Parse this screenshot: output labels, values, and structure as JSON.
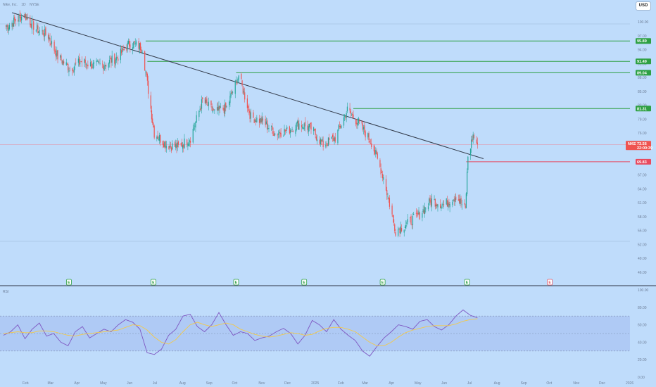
{
  "header": {
    "symbol": "Nike, Inc.",
    "interval": "1D",
    "exchange": "NYSE"
  },
  "currency_button": "USD",
  "colors": {
    "background": "#bfdcfb",
    "up": "#26a69a",
    "down": "#ef5350",
    "level": "#2ea043",
    "support": "#e84a5f",
    "trendline": "#333b4a",
    "rsi_line": "#7e57c2",
    "rsi_ma": "#f2c94c"
  },
  "chart_data": [
    {
      "type": "candlestick",
      "ylim": [
        44,
        102
      ],
      "y_ticks": [
        "100.00",
        "97.00",
        "94.00",
        "91.00",
        "88.00",
        "85.00",
        "82.00",
        "79.00",
        "76.00",
        "73.00",
        "70.00",
        "67.00",
        "64.00",
        "61.00",
        "58.00",
        "55.00",
        "52.00",
        "49.00",
        "46.00"
      ],
      "x_ticks": [
        "Feb",
        "Mar",
        "Apr",
        "May",
        "Jun",
        "Jul",
        "Aug",
        "Sep",
        "Oct",
        "Nov",
        "Dec",
        "2025",
        "Feb",
        "Mar",
        "Apr",
        "May",
        "Jun",
        "Jul",
        "Aug",
        "Sep",
        "Oct",
        "Nov",
        "Dec",
        "2026"
      ],
      "price_levels": [
        {
          "label": "95.89",
          "value": 95.89,
          "color": "#2ea043"
        },
        {
          "label": "91.49",
          "value": 91.49,
          "color": "#2ea043"
        },
        {
          "label": "89.04",
          "value": 89.04,
          "color": "#2ea043"
        },
        {
          "label": "81.31",
          "value": 81.31,
          "color": "#2ea043"
        },
        {
          "label": "69.83",
          "value": 69.83,
          "color": "#e84a5f"
        }
      ],
      "last_price": {
        "ticker": "NKE",
        "value": "73.56",
        "countdown": "22:00:39"
      },
      "trendline": [
        {
          "x": "2024-01-15",
          "y": 102.0
        },
        {
          "x": "2025-07-15",
          "y": 70.5
        }
      ],
      "event_markers": [
        {
          "x": "Mar",
          "label": "E"
        },
        {
          "x": "Jun",
          "label": "E"
        },
        {
          "x": "Sep",
          "label": "E"
        },
        {
          "x": "Dec",
          "label": "E"
        },
        {
          "x": "Mar",
          "label": "E"
        },
        {
          "x": "Jun",
          "label": "E"
        },
        {
          "x": "Jul",
          "label": "E"
        }
      ],
      "close_path": [
        {
          "x": "2024-01-08",
          "y": 99.0
        },
        {
          "x": "2024-01-29",
          "y": 101.5
        },
        {
          "x": "2024-02-12",
          "y": 98.5
        },
        {
          "x": "2024-02-26",
          "y": 97.0
        },
        {
          "x": "2024-03-08",
          "y": 92.5
        },
        {
          "x": "2024-03-22",
          "y": 90.0
        },
        {
          "x": "2024-04-05",
          "y": 91.5
        },
        {
          "x": "2024-04-19",
          "y": 90.5
        },
        {
          "x": "2024-05-03",
          "y": 91.0
        },
        {
          "x": "2024-05-17",
          "y": 92.5
        },
        {
          "x": "2024-05-31",
          "y": 95.5
        },
        {
          "x": "2024-06-14",
          "y": 94.5
        },
        {
          "x": "2024-06-28",
          "y": 76.0
        },
        {
          "x": "2024-07-12",
          "y": 73.5
        },
        {
          "x": "2024-07-26",
          "y": 73.0
        },
        {
          "x": "2024-08-09",
          "y": 75.0
        },
        {
          "x": "2024-08-23",
          "y": 83.0
        },
        {
          "x": "2024-09-06",
          "y": 80.5
        },
        {
          "x": "2024-09-20",
          "y": 81.5
        },
        {
          "x": "2024-10-04",
          "y": 88.5
        },
        {
          "x": "2024-10-18",
          "y": 79.5
        },
        {
          "x": "2024-11-01",
          "y": 78.5
        },
        {
          "x": "2024-11-15",
          "y": 76.0
        },
        {
          "x": "2024-11-29",
          "y": 76.5
        },
        {
          "x": "2024-12-13",
          "y": 78.0
        },
        {
          "x": "2024-12-27",
          "y": 77.0
        },
        {
          "x": "2025-01-10",
          "y": 73.5
        },
        {
          "x": "2025-01-24",
          "y": 75.0
        },
        {
          "x": "2025-02-07",
          "y": 81.0
        },
        {
          "x": "2025-02-21",
          "y": 78.0
        },
        {
          "x": "2025-03-07",
          "y": 74.0
        },
        {
          "x": "2025-03-21",
          "y": 66.5
        },
        {
          "x": "2025-04-04",
          "y": 55.0
        },
        {
          "x": "2025-04-18",
          "y": 56.5
        },
        {
          "x": "2025-05-02",
          "y": 58.5
        },
        {
          "x": "2025-05-16",
          "y": 61.5
        },
        {
          "x": "2025-05-30",
          "y": 60.5
        },
        {
          "x": "2025-06-13",
          "y": 62.5
        },
        {
          "x": "2025-06-24",
          "y": 59.5
        },
        {
          "x": "2025-06-27",
          "y": 71.0
        },
        {
          "x": "2025-07-03",
          "y": 75.5
        },
        {
          "x": "2025-07-08",
          "y": 73.56
        }
      ]
    },
    {
      "type": "line",
      "title": "RSI",
      "ylim": [
        0,
        100
      ],
      "y_ticks": [
        "100.00",
        "80.00",
        "60.00",
        "40.00",
        "20.00",
        "0.00"
      ],
      "bands": [
        70,
        50,
        30
      ],
      "series": [
        {
          "name": "RSI",
          "values": [
            48,
            52,
            60,
            44,
            55,
            62,
            47,
            50,
            40,
            36,
            52,
            58,
            45,
            50,
            55,
            52,
            60,
            66,
            63,
            55,
            28,
            26,
            32,
            48,
            55,
            70,
            72,
            58,
            52,
            60,
            74,
            60,
            48,
            52,
            50,
            42,
            45,
            47,
            52,
            56,
            50,
            38,
            48,
            65,
            60,
            52,
            66,
            55,
            48,
            42,
            30,
            24,
            35,
            45,
            52,
            60,
            58,
            55,
            64,
            66,
            58,
            54,
            60,
            70,
            77,
            71,
            68
          ]
        },
        {
          "name": "RSI MA",
          "values": [
            50,
            51,
            52,
            51,
            51,
            53,
            53,
            52,
            50,
            48,
            47,
            49,
            50,
            51,
            52,
            53,
            54,
            57,
            60,
            59,
            54,
            46,
            40,
            38,
            43,
            52,
            60,
            63,
            60,
            58,
            60,
            62,
            60,
            55,
            52,
            49,
            47,
            46,
            47,
            49,
            51,
            50,
            48,
            49,
            53,
            56,
            57,
            57,
            55,
            52,
            46,
            40,
            36,
            36,
            40,
            46,
            51,
            54,
            56,
            58,
            59,
            59,
            59,
            61,
            64,
            66,
            67
          ]
        }
      ]
    }
  ]
}
